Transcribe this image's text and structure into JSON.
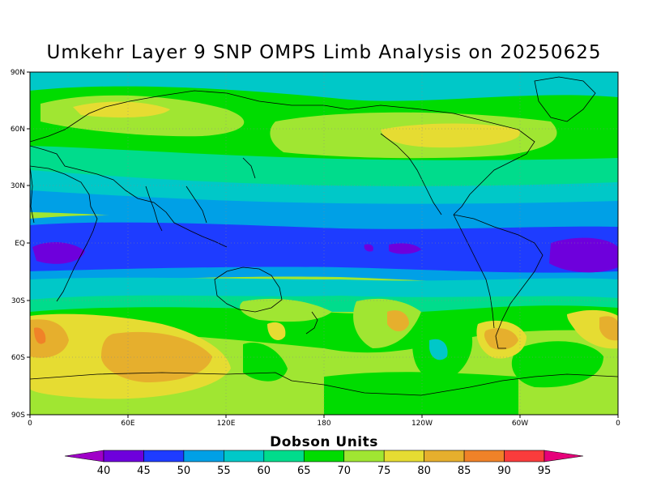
{
  "title": "Umkehr Layer 9 SNP OMPS Limb Analysis on 20250625",
  "lat_labels": [
    "90N",
    "60N",
    "30N",
    "EQ",
    "30S",
    "60S",
    "90S"
  ],
  "lon_labels": [
    "0",
    "60E",
    "120E",
    "180",
    "120W",
    "60W",
    "0"
  ],
  "legend": {
    "title": "Dobson Units",
    "levels": [
      "40",
      "45",
      "50",
      "55",
      "60",
      "65",
      "70",
      "75",
      "80",
      "85",
      "90",
      "95"
    ],
    "colors": [
      "#a000c8",
      "#6e00dc",
      "#1e3cff",
      "#00a0e6",
      "#00c8c8",
      "#00dc8c",
      "#00dc00",
      "#a0e632",
      "#e6dc32",
      "#e6af2d",
      "#f08228",
      "#fa3c3c",
      "#e6007a"
    ]
  }
}
